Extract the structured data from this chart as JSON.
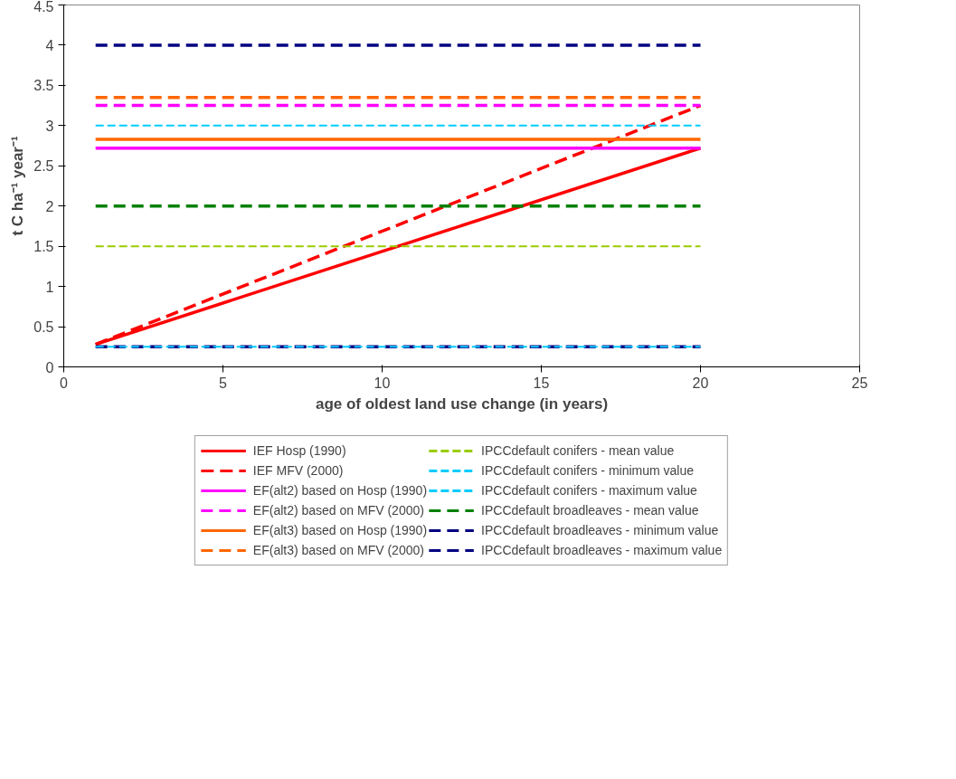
{
  "chart_data": {
    "type": "line",
    "xlabel": "age of oldest land use change (in years)",
    "ylabel": "t C ha⁻¹ year⁻¹",
    "x": [
      1,
      20
    ],
    "xlim": [
      0,
      25
    ],
    "xticks": [
      0,
      5,
      10,
      15,
      20,
      25
    ],
    "ylim": [
      0,
      4.5
    ],
    "yticks": [
      0,
      0.5,
      1,
      1.5,
      2,
      2.5,
      3,
      3.5,
      4,
      4.5
    ],
    "grid": false,
    "legend": "bottom",
    "marker": "none",
    "series": [
      {
        "name": "IEF Hosp (1990)",
        "color": "#ff0000",
        "values": [
          0.28,
          2.72
        ],
        "line_style": "solid"
      },
      {
        "name": "IEF MFV (2000)",
        "color": "#ff0000",
        "values": [
          0.28,
          3.25
        ],
        "line_style": "dashed"
      },
      {
        "name": "EF(alt2) based on Hosp (1990)",
        "color": "#ff00ff",
        "values": [
          2.72,
          2.72
        ],
        "line_style": "solid"
      },
      {
        "name": "EF(alt2) based on MFV (2000)",
        "color": "#ff00ff",
        "values": [
          3.25,
          3.25
        ],
        "line_style": "dashed"
      },
      {
        "name": "EF(alt3) based on Hosp (1990)",
        "color": "#ff6600",
        "values": [
          2.83,
          2.83
        ],
        "line_style": "solid"
      },
      {
        "name": "EF(alt3) based on MFV (2000)",
        "color": "#ff6600",
        "values": [
          3.35,
          3.35
        ],
        "line_style": "dashed"
      },
      {
        "name": "IPCCdefault conifers - mean value",
        "color": "#99cc00",
        "values": [
          1.5,
          1.5
        ],
        "line_style": "dotted"
      },
      {
        "name": "IPCCdefault conifers - minimum value",
        "color": "#00ccff",
        "values": [
          0.25,
          0.25
        ],
        "line_style": "dotted"
      },
      {
        "name": "IPCCdefault conifers - maximum value",
        "color": "#00ccff",
        "values": [
          3.0,
          3.0
        ],
        "line_style": "dotted"
      },
      {
        "name": "IPCCdefault broadleaves - mean value",
        "color": "#008000",
        "values": [
          2.0,
          2.0
        ],
        "line_style": "dashed"
      },
      {
        "name": "IPCCdefault broadleaves - minimum value",
        "color": "#000080",
        "values": [
          0.25,
          0.25
        ],
        "line_style": "dashed"
      },
      {
        "name": "IPCCdefault broadleaves - maximum value",
        "color": "#000080",
        "values": [
          4.0,
          4.0
        ],
        "line_style": "dashed"
      }
    ]
  }
}
